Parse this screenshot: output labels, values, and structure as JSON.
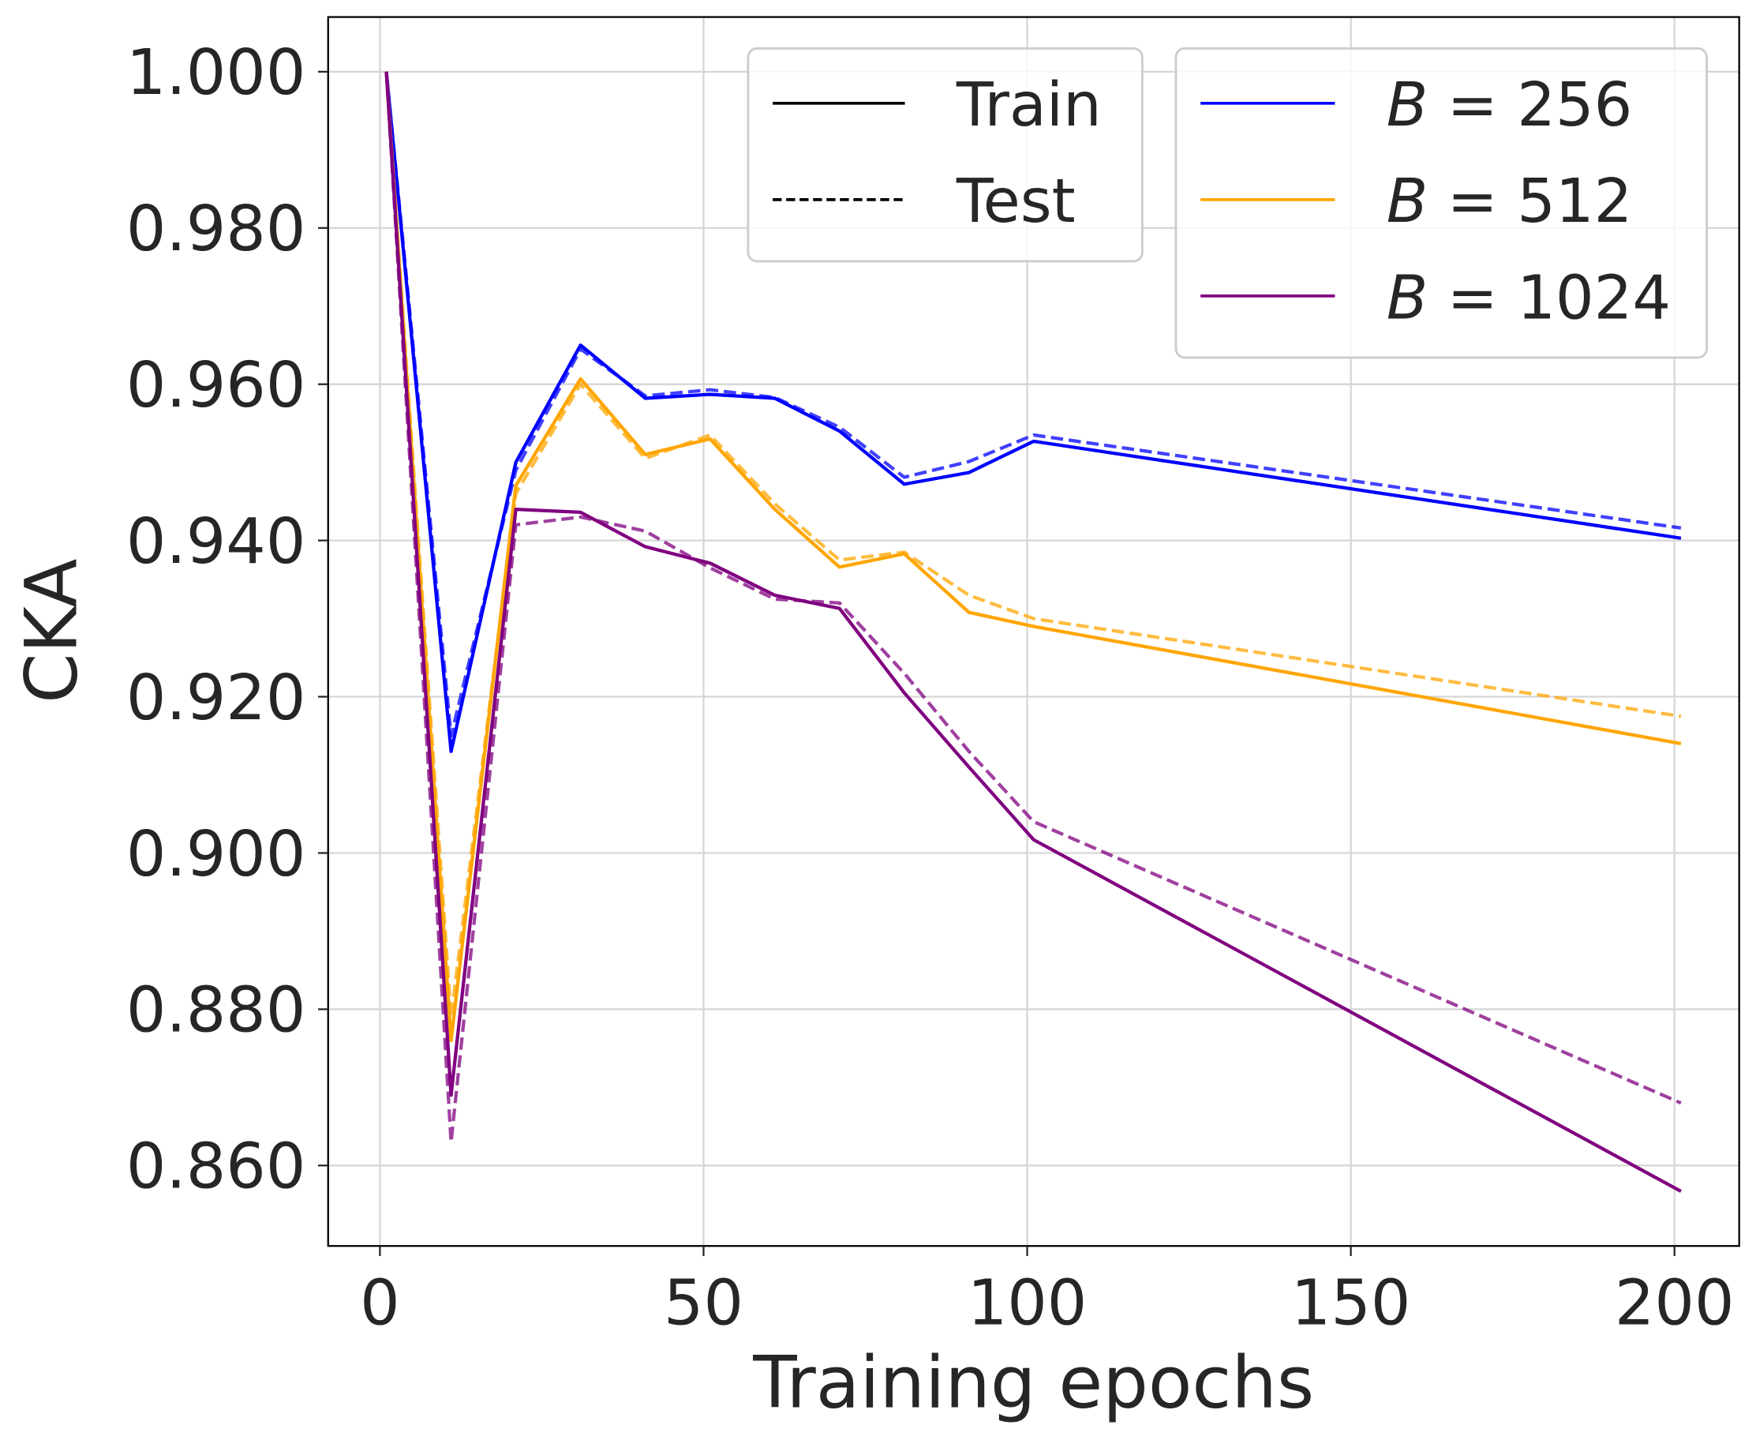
{
  "chart_data": {
    "type": "line",
    "xlabel": "Training epochs",
    "ylabel": "CKA",
    "xlim": [
      -8,
      210
    ],
    "ylim": [
      0.8497,
      1.007
    ],
    "xticks": [
      "0",
      "50",
      "100",
      "150",
      "200"
    ],
    "xtick_values": [
      0,
      50,
      100,
      150,
      200
    ],
    "yticks": [
      "0.860",
      "0.880",
      "0.900",
      "0.920",
      "0.940",
      "0.960",
      "0.980",
      "1.000"
    ],
    "ytick_values": [
      0.86,
      0.88,
      0.9,
      0.92,
      0.94,
      0.96,
      0.98,
      1.0
    ],
    "grid": true,
    "legend_placement": "top-right",
    "style_legend": [
      {
        "label": "Train",
        "dash": "solid"
      },
      {
        "label": "Test",
        "dash": "dashed"
      }
    ],
    "x": [
      1,
      11,
      21,
      31,
      41,
      51,
      61,
      71,
      81,
      91,
      101,
      201
    ],
    "series": [
      {
        "name": "B = 256",
        "var": "B",
        "value": "256",
        "color": "#0000ff",
        "split": "Train",
        "values": [
          1.0,
          0.913,
          0.95,
          0.965,
          0.9582,
          0.9587,
          0.9582,
          0.954,
          0.9472,
          0.9487,
          0.9527,
          0.9403
        ]
      },
      {
        "name": "B = 256",
        "var": "B",
        "value": "256",
        "color": "#0000ff",
        "split": "Test",
        "values": [
          1.0,
          0.915,
          0.949,
          0.9645,
          0.9585,
          0.9593,
          0.9583,
          0.9545,
          0.9481,
          0.9501,
          0.9535,
          0.9416
        ]
      },
      {
        "name": "B = 512",
        "var": "B",
        "value": "512",
        "color": "#ffa500",
        "split": "Train",
        "values": [
          1.0,
          0.876,
          0.947,
          0.9607,
          0.951,
          0.953,
          0.944,
          0.9366,
          0.9383,
          0.9308,
          0.929,
          0.914
        ]
      },
      {
        "name": "B = 512",
        "var": "B",
        "value": "512",
        "color": "#ffa500",
        "split": "Test",
        "values": [
          1.0,
          0.879,
          0.946,
          0.96,
          0.9505,
          0.9535,
          0.9447,
          0.9375,
          0.9385,
          0.933,
          0.93,
          0.9175
        ]
      },
      {
        "name": "B = 1024",
        "var": "B",
        "value": "1024",
        "color": "#800080",
        "split": "Train",
        "values": [
          1.0,
          0.869,
          0.944,
          0.9436,
          0.9392,
          0.9371,
          0.933,
          0.9313,
          0.9205,
          0.911,
          0.9017,
          0.8567
        ]
      },
      {
        "name": "B = 1024",
        "var": "B",
        "value": "1024",
        "color": "#800080",
        "split": "Test",
        "values": [
          1.0,
          0.863,
          0.942,
          0.943,
          0.9412,
          0.9365,
          0.9325,
          0.932,
          0.923,
          0.913,
          0.904,
          0.868
        ]
      }
    ],
    "color_legend": [
      {
        "var": "B",
        "value": "256",
        "color": "#0000ff"
      },
      {
        "var": "B",
        "value": "512",
        "color": "#ffa500"
      },
      {
        "var": "B",
        "value": "1024",
        "color": "#800080"
      }
    ]
  }
}
